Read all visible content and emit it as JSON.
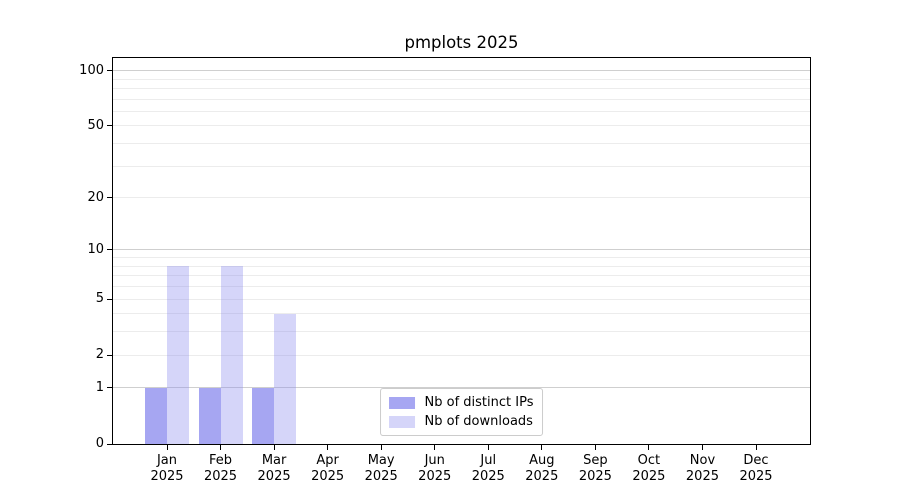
{
  "title": "pmplots 2025",
  "chart_data": {
    "type": "bar",
    "title": "pmplots 2025",
    "categories": [
      "Jan",
      "Feb",
      "Mar",
      "Apr",
      "May",
      "Jun",
      "Jul",
      "Aug",
      "Sep",
      "Oct",
      "Nov",
      "Dec"
    ],
    "year": "2025",
    "series": [
      {
        "name": "Nb of distinct IPs",
        "color": "#8888ee",
        "alpha": 0.75,
        "values": [
          1,
          1,
          1,
          0,
          0,
          0,
          0,
          0,
          0,
          0,
          0,
          0
        ]
      },
      {
        "name": "Nb of downloads",
        "color": "#8888ee",
        "alpha": 0.35,
        "values": [
          8,
          8,
          4,
          0,
          0,
          0,
          0,
          0,
          0,
          0,
          0,
          0
        ]
      }
    ],
    "yscale": "log1p",
    "ylim": [
      0,
      117
    ],
    "yticks": [
      0,
      1,
      2,
      5,
      10,
      20,
      50,
      100
    ],
    "minor_gridlines": [
      2,
      3,
      4,
      5,
      6,
      7,
      8,
      9,
      20,
      30,
      40,
      50,
      60,
      70,
      80,
      90
    ],
    "major_gridlines": [
      1,
      10,
      100
    ],
    "grid": true,
    "legend_position": "lower center",
    "xlabel": "",
    "ylabel": ""
  },
  "colors": {
    "background": "#ffffff",
    "axis": "#000000",
    "text": "#000000",
    "grid_minor": "#ececec",
    "grid_major": "#cfcfcf",
    "legend_border": "#cccccc",
    "bar_base": "#8888ee"
  }
}
